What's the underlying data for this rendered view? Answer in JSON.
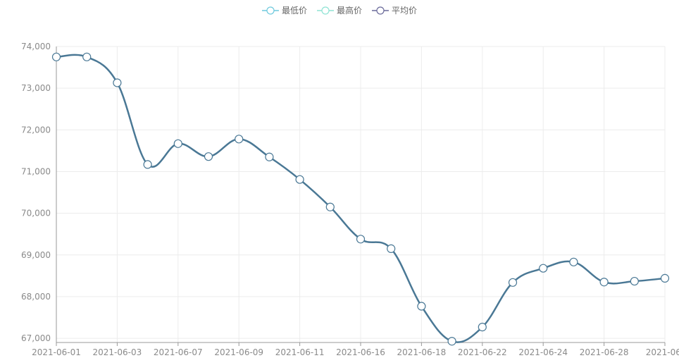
{
  "colors": {
    "line": "#4a7895",
    "grid": "#ececec",
    "axis": "#999999",
    "tick_text": "#8a8a8a",
    "point_fill": "#ffffff"
  },
  "legend": {
    "items": [
      {
        "label": "最低价",
        "color": "#6ec9dd",
        "icon": "circle-line-icon"
      },
      {
        "label": "最高价",
        "color": "#8fe3d4",
        "icon": "circle-line-icon"
      },
      {
        "label": "平均价",
        "color": "#6a6a9a",
        "icon": "circle-line-icon"
      }
    ]
  },
  "chart_data": {
    "type": "line",
    "title": "",
    "xlabel": "",
    "ylabel": "",
    "ylim": [
      66900,
      74000
    ],
    "yticks": [
      "67,000",
      "68,000",
      "69,000",
      "70,000",
      "71,000",
      "72,000",
      "73,000",
      "74,000"
    ],
    "ytick_values": [
      67000,
      68000,
      69000,
      70000,
      71000,
      72000,
      73000,
      74000
    ],
    "x_tick_labels": [
      "2021-06-01",
      "2021-06-03",
      "2021-06-07",
      "2021-06-09",
      "2021-06-11",
      "2021-06-16",
      "2021-06-18",
      "2021-06-22",
      "2021-06-24",
      "2021-06-28",
      "2021-06-"
    ],
    "grid": true,
    "legend_position": "top-center",
    "series": [
      {
        "name": "平均价",
        "values": [
          73750,
          73750,
          73130,
          71170,
          71670,
          71360,
          71780,
          71350,
          70810,
          70150,
          69380,
          69150,
          67770,
          66930,
          67270,
          68340,
          68680,
          68830,
          68350,
          68370,
          68440
        ]
      }
    ]
  }
}
